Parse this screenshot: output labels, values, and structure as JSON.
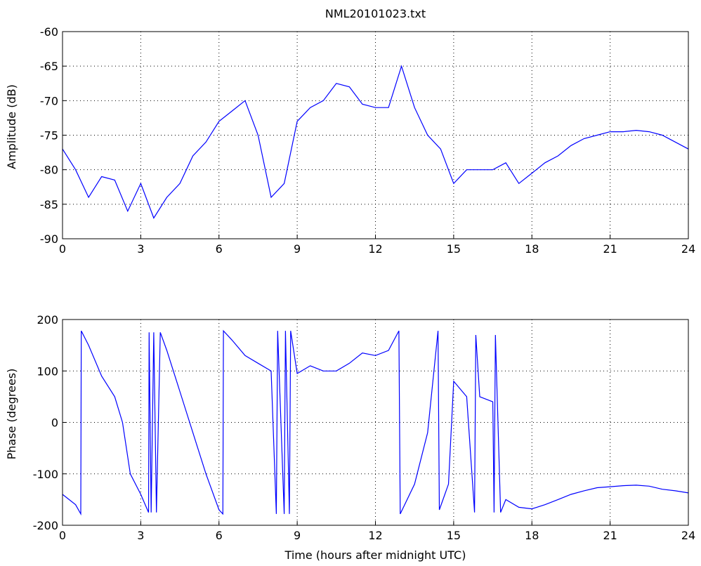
{
  "chart_data": [
    {
      "type": "line",
      "title": "NML20101023.txt",
      "ylabel": "Amplitude (dB)",
      "xlim": [
        0,
        24
      ],
      "xticks": [
        0,
        3,
        6,
        9,
        12,
        15,
        18,
        21,
        24
      ],
      "ylim": [
        -90,
        -60
      ],
      "yticks": [
        -90,
        -85,
        -80,
        -75,
        -70,
        -65,
        -60
      ],
      "grid": true,
      "x": [
        0,
        0.5,
        1,
        1.5,
        2,
        2.5,
        3,
        3.5,
        4,
        4.5,
        5,
        5.5,
        6,
        6.5,
        7,
        7.5,
        8,
        8.5,
        9,
        9.5,
        10,
        10.5,
        11,
        11.5,
        12,
        12.5,
        13,
        13.5,
        14,
        14.5,
        15,
        15.5,
        16,
        16.5,
        17,
        17.5,
        18,
        18.5,
        19,
        19.5,
        20,
        20.5,
        21,
        21.5,
        22,
        22.5,
        23,
        23.5,
        24
      ],
      "series": [
        {
          "color": "#0000ff",
          "values": [
            -77,
            -80,
            -84,
            -81,
            -81.5,
            -86,
            -82,
            -87,
            -84,
            -82,
            -78,
            -76,
            -73,
            -71.5,
            -70,
            -75,
            -84,
            -82,
            -73,
            -71,
            -70,
            -67.5,
            -68,
            -70.5,
            -71,
            -71,
            -65,
            -71,
            -75,
            -77,
            -82,
            -80,
            -80,
            -80,
            -79,
            -82,
            -80.5,
            -79,
            -78,
            -76.5,
            -75.5,
            -75,
            -74.5,
            -74.5,
            -74.3,
            -74.5,
            -75,
            -76,
            -77
          ]
        }
      ]
    },
    {
      "type": "line",
      "ylabel": "Phase (degrees)",
      "xlabel": "Time (hours after midnight UTC)",
      "xlim": [
        0,
        24
      ],
      "xticks": [
        0,
        3,
        6,
        9,
        12,
        15,
        18,
        21,
        24
      ],
      "ylim": [
        -200,
        200
      ],
      "yticks": [
        -200,
        -100,
        0,
        100,
        200
      ],
      "grid": true,
      "x": [
        0,
        0.5,
        0.7,
        0.72,
        1,
        1.5,
        2,
        2.3,
        2.6,
        3,
        3.3,
        3.32,
        3.4,
        3.5,
        3.6,
        3.75,
        4,
        4.5,
        5,
        5.5,
        6,
        6.15,
        6.17,
        6.5,
        7,
        7.5,
        8,
        8.2,
        8.25,
        8.5,
        8.55,
        8.7,
        8.75,
        9,
        9.5,
        10,
        10.5,
        11,
        11.5,
        12,
        12.5,
        12.9,
        12.95,
        13.5,
        14,
        14.4,
        14.45,
        14.8,
        15,
        15.5,
        15.8,
        15.85,
        16,
        16.5,
        16.55,
        16.6,
        16.8,
        17,
        17.5,
        18,
        18.5,
        19,
        19.5,
        20,
        20.5,
        21,
        21.5,
        22,
        22.5,
        23,
        23.5,
        24
      ],
      "series": [
        {
          "color": "#0000ff",
          "values": [
            -140,
            -160,
            -178,
            178,
            150,
            90,
            50,
            0,
            -100,
            -140,
            -175,
            175,
            -175,
            175,
            -175,
            175,
            140,
            60,
            -20,
            -100,
            -170,
            -178,
            178,
            160,
            130,
            115,
            100,
            -178,
            178,
            -178,
            178,
            -178,
            178,
            95,
            110,
            100,
            100,
            115,
            135,
            130,
            140,
            178,
            -178,
            -120,
            -20,
            178,
            -170,
            -120,
            80,
            50,
            -175,
            170,
            50,
            40,
            -175,
            170,
            -175,
            -150,
            -165,
            -168,
            -160,
            -150,
            -140,
            -133,
            -127,
            -125,
            -123,
            -122,
            -124,
            -130,
            -133,
            -137
          ]
        }
      ]
    }
  ]
}
